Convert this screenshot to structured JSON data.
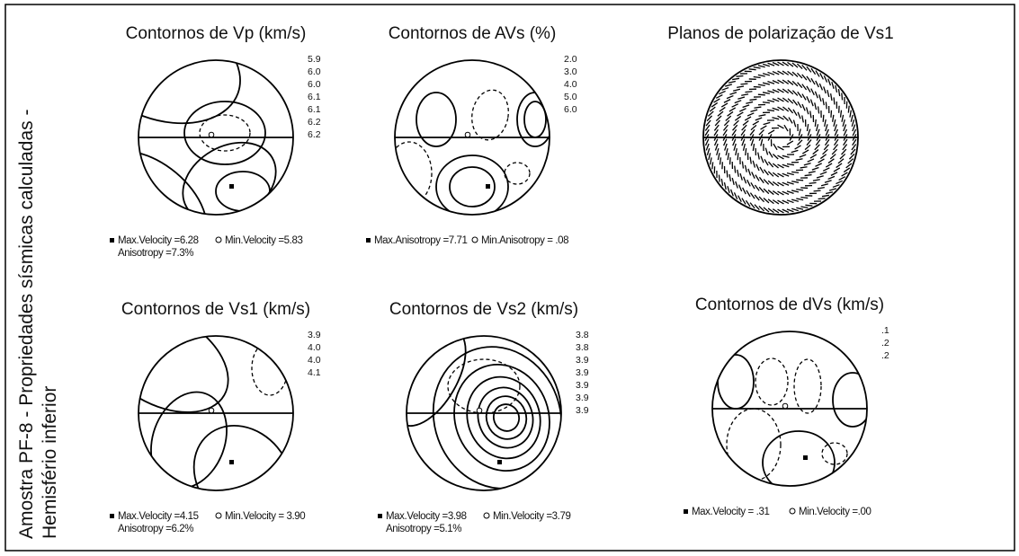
{
  "side_label": [
    "Amostra PF-8 - Propriedades sísmicas calculadas -",
    "Hemisfério inferior"
  ],
  "panels": [
    {
      "title": "Contornos de Vp (km/s)",
      "levels": [
        "5.9",
        "6.0",
        "6.0",
        "6.1",
        "6.1",
        "6.2",
        "6.2"
      ],
      "max": "Max.Velocity =6.28",
      "min": "Min.Velocity =5.83",
      "extra": "Anisotropy =7.3%"
    },
    {
      "title": "Contornos de AVs (%)",
      "levels": [
        "2.0",
        "3.0",
        "4.0",
        "5.0",
        "6.0"
      ],
      "max": "Max.Anisotropy =7.71",
      "min": "Min.Anisotropy = .08"
    },
    {
      "title": "Planos de polarização de Vs1"
    },
    {
      "title": "Contornos de Vs1 (km/s)",
      "levels": [
        "3.9",
        "4.0",
        "4.0",
        "4.1"
      ],
      "max": "Max.Velocity =4.15",
      "min": "Min.Velocity = 3.90",
      "extra": "Anisotropy =6.2%"
    },
    {
      "title": "Contornos de Vs2 (km/s)",
      "levels": [
        "3.8",
        "3.8",
        "3.9",
        "3.9",
        "3.9",
        "3.9",
        "3.9"
      ],
      "max": "Max.Velocity =3.98",
      "min": "Min.Velocity =3.79",
      "extra": "Anisotropy =5.1%"
    },
    {
      "title": "Contornos de dVs (km/s)",
      "levels": [
        ".1",
        ".2",
        ".2"
      ],
      "max": "Max.Velocity = .31",
      "min": "Min.Velocity =.00"
    }
  ]
}
